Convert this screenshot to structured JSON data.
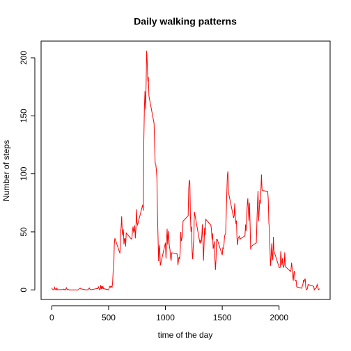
{
  "chart_data": {
    "type": "line",
    "title": "Daily walking patterns",
    "x_label": "time of the day",
    "y_label": "Number of steps",
    "x": [
      0,
      5,
      10,
      15,
      20,
      25,
      30,
      35,
      40,
      45,
      50,
      55,
      100,
      105,
      110,
      115,
      120,
      125,
      130,
      135,
      140,
      145,
      150,
      155,
      200,
      230,
      250,
      255,
      300,
      320,
      330,
      335,
      340,
      345,
      400,
      405,
      410,
      420,
      425,
      430,
      435,
      440,
      445,
      450,
      455,
      500,
      505,
      510,
      515,
      520,
      525,
      530,
      535,
      540,
      545,
      550,
      555,
      600,
      605,
      610,
      615,
      620,
      625,
      630,
      635,
      640,
      645,
      650,
      655,
      700,
      705,
      710,
      715,
      720,
      725,
      730,
      735,
      740,
      745,
      750,
      755,
      800,
      805,
      810,
      815,
      820,
      825,
      830,
      835,
      840,
      845,
      850,
      855,
      900,
      905,
      910,
      915,
      920,
      925,
      930,
      935,
      940,
      945,
      950,
      955,
      1000,
      1005,
      1010,
      1015,
      1020,
      1025,
      1030,
      1035,
      1040,
      1045,
      1050,
      1055,
      1100,
      1105,
      1110,
      1115,
      1120,
      1125,
      1130,
      1135,
      1140,
      1145,
      1150,
      1155,
      1200,
      1205,
      1210,
      1215,
      1220,
      1225,
      1230,
      1235,
      1240,
      1245,
      1250,
      1255,
      1300,
      1305,
      1310,
      1315,
      1320,
      1325,
      1330,
      1335,
      1340,
      1345,
      1350,
      1355,
      1400,
      1405,
      1410,
      1415,
      1420,
      1425,
      1430,
      1435,
      1440,
      1445,
      1450,
      1455,
      1500,
      1505,
      1510,
      1515,
      1520,
      1525,
      1530,
      1535,
      1540,
      1545,
      1550,
      1555,
      1600,
      1605,
      1610,
      1615,
      1620,
      1625,
      1630,
      1635,
      1640,
      1645,
      1650,
      1655,
      1700,
      1705,
      1710,
      1715,
      1720,
      1725,
      1730,
      1735,
      1740,
      1745,
      1750,
      1755,
      1800,
      1805,
      1810,
      1815,
      1820,
      1825,
      1830,
      1835,
      1840,
      1845,
      1850,
      1855,
      1900,
      1905,
      1910,
      1915,
      1920,
      1925,
      1930,
      1935,
      1940,
      1945,
      1950,
      1955,
      2000,
      2005,
      2010,
      2015,
      2020,
      2025,
      2030,
      2035,
      2040,
      2045,
      2050,
      2055,
      2100,
      2105,
      2110,
      2115,
      2120,
      2125,
      2130,
      2135,
      2140,
      2145,
      2150,
      2155,
      2200,
      2205,
      2210,
      2215,
      2220,
      2225,
      2230,
      2235,
      2240,
      2245,
      2250,
      2255,
      2300,
      2305,
      2310,
      2315,
      2320,
      2325,
      2330,
      2335,
      2340,
      2345,
      2350,
      2355
    ],
    "series": [
      {
        "color": "#ff0000",
        "values": [
          1.72,
          0.34,
          0.13,
          0.15,
          0.08,
          2.09,
          0.53,
          0.87,
          0,
          1.47,
          0.3,
          0.13,
          0.32,
          0.68,
          0.15,
          0.34,
          0,
          1.11,
          1.83,
          0.17,
          0.17,
          0.38,
          0.26,
          0,
          0,
          0,
          1.55,
          0.94,
          0,
          0.21,
          1.62,
          0.58,
          0.49,
          0.08,
          1.19,
          0.94,
          2.57,
          0.34,
          0.36,
          4.11,
          0.66,
          3.49,
          0.83,
          3.11,
          1.11,
          0,
          1.57,
          3,
          2.25,
          3.32,
          2.96,
          2.09,
          6.06,
          16.02,
          18.34,
          39.45,
          44.49,
          31.49,
          49.26,
          53.77,
          63.45,
          49.96,
          47.08,
          52.15,
          39.34,
          44.02,
          44.17,
          37.36,
          49.04,
          43.81,
          44.38,
          50.51,
          54.51,
          49.92,
          50.98,
          55.68,
          44.32,
          52.26,
          69.55,
          57.85,
          56.15,
          73.38,
          68.21,
          129.43,
          157.53,
          171.15,
          155.4,
          177.3,
          206.17,
          195.92,
          179.57,
          183.4,
          167.02,
          143.45,
          124.04,
          109.11,
          108.11,
          103.72,
          95.96,
          66.21,
          45.23,
          24.79,
          38.75,
          34.98,
          21.06,
          40.57,
          26.98,
          42.42,
          52.66,
          38.92,
          50.79,
          44.28,
          37.42,
          34.7,
          28.34,
          25.09,
          31.94,
          31.36,
          29.68,
          21.32,
          25.55,
          28.38,
          26.47,
          33.43,
          49.98,
          42.04,
          44.6,
          46.04,
          59.19,
          63.87,
          87.7,
          94.85,
          92.77,
          63.4,
          50.17,
          54.47,
          32.42,
          26.53,
          37.74,
          45.06,
          67.28,
          42.34,
          39.88,
          43.26,
          40.98,
          46.25,
          56.43,
          42.75,
          25.13,
          39.96,
          53.55,
          47.32,
          60.81,
          55.75,
          51.96,
          43.58,
          48.7,
          35.47,
          37.55,
          41.85,
          27.51,
          17.11,
          26.08,
          43.62,
          43.77,
          30.02,
          36.08,
          35.49,
          38.85,
          45.96,
          47.75,
          48.13,
          65.32,
          82.91,
          98.66,
          102.11,
          83.96,
          62.13,
          64.13,
          74.55,
          63.17,
          56.91,
          59.77,
          43.87,
          38.57,
          44.66,
          45.45,
          46.21,
          43.68,
          46.62,
          56.3,
          50.72,
          61.23,
          72.72,
          78.94,
          68.94,
          59.66,
          75.09,
          56.51,
          34.77,
          37.45,
          40.68,
          58.02,
          74.7,
          85.32,
          59.26,
          67.77,
          77.7,
          74.25,
          85.34,
          99.45,
          86.58,
          85.6,
          84.87,
          77.83,
          58.04,
          53.36,
          36.32,
          20.72,
          27.4,
          40.02,
          30.21,
          25.55,
          45.66,
          33.53,
          19.62,
          19.02,
          19.34,
          33.34,
          26.81,
          21.17,
          27.3,
          21.34,
          19.55,
          21.32,
          32.3,
          20.15,
          15.94,
          17.23,
          23.45,
          19.25,
          12.45,
          8.02,
          14.66,
          16.3,
          8.68,
          7.79,
          8.13,
          2.62,
          1.45,
          3.68,
          4.81,
          8.51,
          7.08,
          8.7,
          9.75,
          2.21,
          0.32,
          0.11,
          1.6,
          4.6,
          3.3,
          2.85,
          0,
          0.83,
          0.96,
          1.58,
          2.6,
          4.7,
          3.3,
          0.64,
          0.23,
          1.08
        ]
      }
    ],
    "xlim": [
      -94.2,
      2449.2
    ],
    "ylim": [
      -8.25,
      214.4
    ],
    "xticks": [
      0,
      500,
      1000,
      1500,
      2000
    ],
    "yticks": [
      0,
      50,
      100,
      150,
      200
    ]
  }
}
